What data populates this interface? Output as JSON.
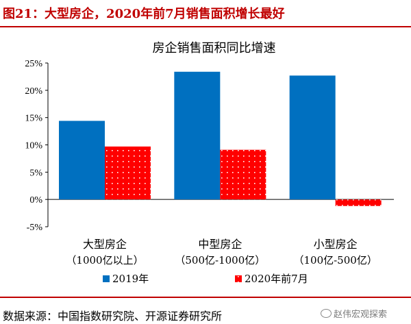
{
  "figure_title": "图21：大型房企，2020年前7月销售面积增长最好",
  "source_text": "数据来源：中国指数研究院、开源证券研究所",
  "watermark_text": "赵伟宏观探索",
  "colors": {
    "accent": "#c00000",
    "series_2019": "#0070c0",
    "series_2020": "#ff0000",
    "dot_pattern": "#ffffff",
    "axis": "#000000"
  },
  "chart_data": {
    "type": "bar",
    "title": "房企销售面积同比增速",
    "categories": [
      [
        "大型房企",
        "（1000亿以上）"
      ],
      [
        "中型房企",
        "（500亿-1000亿）"
      ],
      [
        "小型房企",
        "（100亿-500亿）"
      ]
    ],
    "series": [
      {
        "name": "2019年",
        "values": [
          14.4,
          23.4,
          22.7
        ],
        "color": "#0070c0",
        "pattern": "solid"
      },
      {
        "name": "2020年前7月",
        "values": [
          9.7,
          9.1,
          -1.2
        ],
        "color": "#ff0000",
        "pattern": "dots"
      }
    ],
    "ylim": [
      -5,
      25
    ],
    "yticks": [
      -5,
      0,
      5,
      10,
      15,
      20,
      25
    ],
    "ytick_labels": [
      "-5%",
      "0%",
      "5%",
      "10%",
      "15%",
      "20%",
      "25%"
    ],
    "legend_position": "bottom",
    "grid": false
  }
}
